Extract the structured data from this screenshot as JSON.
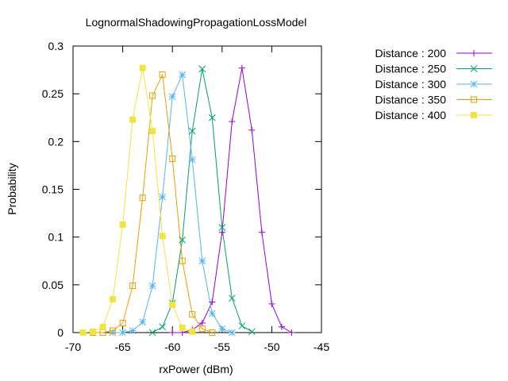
{
  "chart_data": {
    "type": "line",
    "title": "LognormalShadowingPropagationLossModel",
    "xlabel": "rxPower (dBm)",
    "ylabel": "Probability",
    "xlim": [
      -70,
      -45
    ],
    "ylim": [
      0,
      0.3
    ],
    "x_ticks": [
      "-70",
      "-65",
      "-60",
      "-55",
      "-50",
      "-45"
    ],
    "y_ticks": [
      "0",
      "0.05",
      "0.1",
      "0.15",
      "0.2",
      "0.25",
      "0.3"
    ],
    "legend_position": "top-right (outside plot)",
    "grid": false,
    "series": [
      {
        "name": "Distance : 200",
        "color": "#9400d3",
        "marker": "plus",
        "points": [
          [
            -60,
            0
          ],
          [
            -59,
            0
          ],
          [
            -58,
            0.003
          ],
          [
            -57,
            0.01
          ],
          [
            -56,
            0.032
          ],
          [
            -55,
            0.105
          ],
          [
            -54,
            0.221
          ],
          [
            -53,
            0.277
          ],
          [
            -52,
            0.212
          ],
          [
            -51,
            0.105
          ],
          [
            -50,
            0.03
          ],
          [
            -49,
            0.006
          ],
          [
            -48,
            0
          ]
        ]
      },
      {
        "name": "Distance : 250",
        "color": "#009e73",
        "marker": "cross",
        "points": [
          [
            -62,
            0
          ],
          [
            -61,
            0.006
          ],
          [
            -60,
            0.031
          ],
          [
            -59,
            0.097
          ],
          [
            -58,
            0.211
          ],
          [
            -57,
            0.276
          ],
          [
            -56,
            0.225
          ],
          [
            -55,
            0.11
          ],
          [
            -54,
            0.036
          ],
          [
            -53,
            0.007
          ],
          [
            -52,
            0.001
          ]
        ]
      },
      {
        "name": "Distance : 300",
        "color": "#56b4e9",
        "marker": "star",
        "points": [
          [
            -66,
            0
          ],
          [
            -65,
            0
          ],
          [
            -64,
            0.002
          ],
          [
            -63,
            0.011
          ],
          [
            -62,
            0.049
          ],
          [
            -61,
            0.142
          ],
          [
            -60,
            0.247
          ],
          [
            -59,
            0.27
          ],
          [
            -58,
            0.181
          ],
          [
            -57,
            0.075
          ],
          [
            -56,
            0.02
          ],
          [
            -55,
            0.004
          ],
          [
            -54,
            0
          ]
        ]
      },
      {
        "name": "Distance : 350",
        "color": "#e69f00",
        "marker": "open-square",
        "points": [
          [
            -68,
            0
          ],
          [
            -67,
            0
          ],
          [
            -66,
            0.002
          ],
          [
            -65,
            0.01
          ],
          [
            -64,
            0.049
          ],
          [
            -63,
            0.141
          ],
          [
            -62,
            0.248
          ],
          [
            -61,
            0.27
          ],
          [
            -60,
            0.182
          ],
          [
            -59,
            0.075
          ],
          [
            -58,
            0.019
          ],
          [
            -57,
            0.004
          ],
          [
            -56,
            0
          ]
        ]
      },
      {
        "name": "Distance : 400",
        "color": "#f0e442",
        "marker": "filled-square",
        "points": [
          [
            -69,
            0
          ],
          [
            -68,
            0.001
          ],
          [
            -67,
            0.006
          ],
          [
            -66,
            0.035
          ],
          [
            -65,
            0.113
          ],
          [
            -64,
            0.223
          ],
          [
            -63,
            0.277
          ],
          [
            -62,
            0.211
          ],
          [
            -61,
            0.101
          ],
          [
            -60,
            0.029
          ],
          [
            -59,
            0.005
          ],
          [
            -58,
            0.001
          ]
        ]
      }
    ]
  }
}
